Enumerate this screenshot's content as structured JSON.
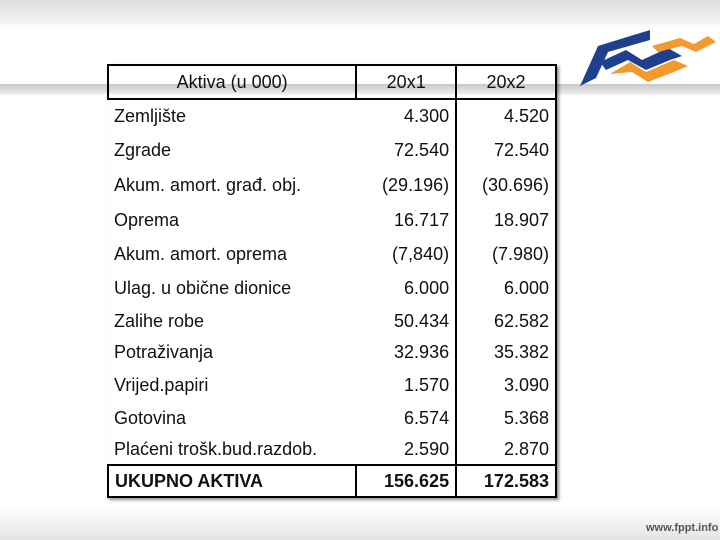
{
  "table": {
    "headers": [
      "Aktiva (u 000)",
      "20x1",
      "20x2"
    ],
    "rows": [
      {
        "label": "Zemljište",
        "y1": "4.300",
        "y2": "4.520"
      },
      {
        "label": "Zgrade",
        "y1": "72.540",
        "y2": "72.540"
      },
      {
        "label": "Akum. amort. građ. obj.",
        "y1": "(29.196)",
        "y2": "(30.696)"
      },
      {
        "label": "Oprema",
        "y1": "16.717",
        "y2": "18.907"
      },
      {
        "label": "Akum. amort. oprema",
        "y1": "(7,840)",
        "y2": "(7.980)"
      },
      {
        "label": "Ulag. u obične dionice",
        "y1": "6.000",
        "y2": "6.000"
      },
      {
        "label": "Zalihe robe",
        "y1": "50.434",
        "y2": "62.582"
      },
      {
        "label": "Potraživanja",
        "y1": "32.936",
        "y2": "35.382"
      },
      {
        "label": "Vrijed.papiri",
        "y1": "1.570",
        "y2": "3.090"
      },
      {
        "label": "Gotovina",
        "y1": "6.574",
        "y2": "5.368"
      },
      {
        "label": "Plaćeni trošk.bud.razdob.",
        "y1": "2.590",
        "y2": "2.870"
      }
    ],
    "total": {
      "label": "UKUPNO AKTIVA",
      "y1": "156.625",
      "y2": "172.583"
    }
  },
  "footer": {
    "url": "www.fppt.info"
  },
  "colors": {
    "logo_blue": "#1f3f8f",
    "logo_orange": "#f29a2e"
  }
}
